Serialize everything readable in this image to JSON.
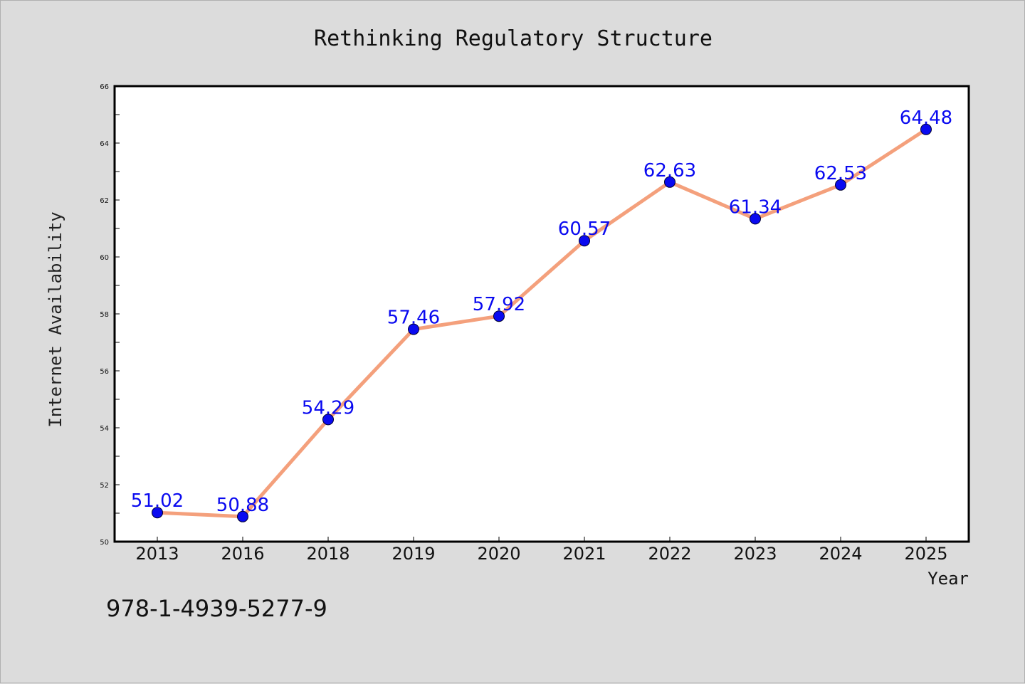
{
  "footer_text": "978-1-4939-5277-9",
  "chart_data": {
    "type": "line",
    "title": "Rethinking Regulatory Structure",
    "xlabel": "Year",
    "ylabel": "Internet Availability",
    "categories": [
      "2013",
      "2016",
      "2018",
      "2019",
      "2020",
      "2021",
      "2022",
      "2023",
      "2024",
      "2025"
    ],
    "series": [
      {
        "values": [
          51.02,
          50.88,
          54.29,
          57.46,
          57.92,
          60.57,
          62.63,
          61.34,
          62.53,
          64.48
        ],
        "data_labels": [
          "51.02",
          "50.88",
          "54.29",
          "57.46",
          "57.92",
          "60.57",
          "62.63",
          "61.34",
          "62.53",
          "64.48"
        ],
        "line_color": "#f4a07c",
        "marker_color": "#0a0af0",
        "label_color": "#0a0af0"
      }
    ],
    "ylim": [
      50,
      66
    ],
    "yticks": [
      50,
      52,
      54,
      56,
      58,
      60,
      62,
      64,
      66
    ],
    "ytick_labels": [
      "50",
      "52",
      "54",
      "56",
      "58",
      "60",
      "62",
      "64",
      "66"
    ],
    "grid": false,
    "legend": "none"
  }
}
